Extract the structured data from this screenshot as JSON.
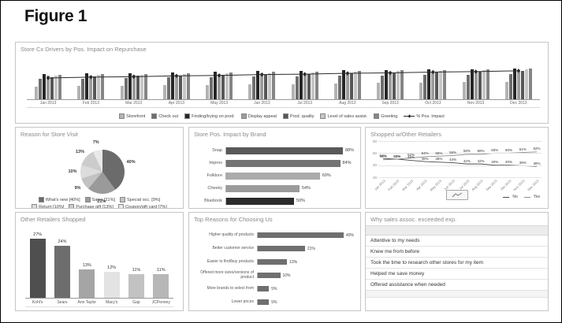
{
  "figure_title": "Figure 1",
  "chart_data": [
    {
      "id": "store-cx-drivers",
      "type": "bar",
      "title": "Store Cx Drivers by Pos. Impact on Repurchase",
      "categories": [
        "Jan 2013",
        "Feb 2013",
        "Mar 2013",
        "Apr 2013",
        "May 2013",
        "Jun 2013",
        "Jul 2013",
        "Aug 2013",
        "Sep 2013",
        "Oct 2013",
        "Nov 2013",
        "Dec 2013"
      ],
      "series": [
        {
          "name": "Storefront",
          "color": "#b3b3b3",
          "values": [
            30,
            31,
            32,
            33,
            34,
            35,
            36,
            37,
            38,
            39,
            40,
            41
          ]
        },
        {
          "name": "Check out",
          "color": "#6e6e6e",
          "values": [
            48,
            49,
            50,
            51,
            52,
            53,
            54,
            55,
            56,
            57,
            58,
            59
          ]
        },
        {
          "name": "Finding/trying on prod.",
          "color": "#262626",
          "values": [
            60,
            61,
            62,
            63,
            64,
            66,
            67,
            68,
            69,
            70,
            71,
            73
          ]
        },
        {
          "name": "Display appeal",
          "color": "#9c9c9c",
          "values": [
            55,
            56,
            57,
            58,
            59,
            61,
            62,
            63,
            64,
            65,
            66,
            68
          ]
        },
        {
          "name": "Prod. quality",
          "color": "#575757",
          "values": [
            52,
            53,
            55,
            56,
            57,
            58,
            60,
            61,
            62,
            63,
            65,
            66
          ]
        },
        {
          "name": "Level of sales assist.",
          "color": "#c6c6c6",
          "values": [
            56,
            57,
            58,
            60,
            61,
            62,
            63,
            64,
            66,
            67,
            68,
            70
          ]
        },
        {
          "name": "Greeting",
          "color": "#858585",
          "values": [
            58,
            59,
            60,
            62,
            63,
            64,
            65,
            66,
            68,
            69,
            70,
            72
          ]
        }
      ],
      "line_series": {
        "name": "% Pos. Impact",
        "color": "#2b2b2b",
        "values": [
          50,
          52,
          53,
          55,
          56,
          58,
          59,
          61,
          62,
          64,
          65,
          67
        ]
      },
      "ylim": [
        0,
        100
      ],
      "legend_position": "bottom"
    },
    {
      "id": "reason-for-store-visit",
      "type": "pie",
      "title": "Reason for Store Visit",
      "slices": [
        {
          "label": "What's new",
          "pct": 40,
          "color": "#6b6b6b"
        },
        {
          "label": "Sales",
          "pct": 21,
          "color": "#9a9a9a"
        },
        {
          "label": "Special occ.",
          "pct": 9,
          "color": "#c2c2c2"
        },
        {
          "label": "Return",
          "pct": 10,
          "color": "#dcdcdc"
        },
        {
          "label": "Purchase gift",
          "pct": 13,
          "color": "#cccccc"
        },
        {
          "label": "Coupon/gift card",
          "pct": 7,
          "color": "#e8e8e8"
        }
      ],
      "legend": [
        "What's new [40%]",
        "Sales [21%]",
        "Special occ. [9%]",
        "Return [10%]",
        "Purchase gift [13%]",
        "Coupon/gift card [7%]"
      ]
    },
    {
      "id": "store-pos-impact-by-brand",
      "type": "bar",
      "orientation": "horizontal",
      "title": "Store Pos. Impact by Brand",
      "categories": [
        "Snap",
        "Improv",
        "Folklore",
        "Cheeky",
        "Bluebook"
      ],
      "values": [
        88,
        84,
        69,
        54,
        50
      ],
      "colors": [
        "#595959",
        "#747474",
        "#ababab",
        "#9b9b9b",
        "#2b2b2b"
      ],
      "value_suffix": "%"
    },
    {
      "id": "shopped-w-other-retailers",
      "type": "line",
      "title": "Shopped w/Other Retailers",
      "categories": [
        "Jan 2013",
        "Feb 2013",
        "Mar 2013",
        "Apr 2013",
        "May 2013",
        "Jun 2013",
        "Jul 2013",
        "Aug 2013",
        "Sep 2013",
        "Oct 2013",
        "Nov 2013",
        "Dec 2013"
      ],
      "series": [
        {
          "name": "No",
          "color": "#4a4a4a",
          "values": [
            51,
            50,
            48,
            46,
            45,
            44,
            42,
            42,
            40,
            40,
            39,
            38
          ]
        },
        {
          "name": "Yes",
          "color": "#8c8c8c",
          "values": [
            49,
            50,
            52,
            54,
            55,
            56,
            58,
            58,
            60,
            60,
            61,
            62
          ]
        }
      ],
      "yticks": [
        80,
        60,
        40,
        20
      ],
      "ylim": [
        20,
        80
      ],
      "legend_position": "bottom-right",
      "value_suffix": "%"
    },
    {
      "id": "other-retailers-shopped",
      "type": "bar",
      "title": "Other Retailers Shopped",
      "categories": [
        "Kohl's",
        "Sears",
        "Ann Taylor",
        "Macy's",
        "Gap",
        "JCPenney"
      ],
      "values": [
        27,
        24,
        13,
        12,
        11,
        11
      ],
      "colors": [
        "#4f4f4f",
        "#6d6d6d",
        "#a5a5a5",
        "#e3e3e3",
        "#c2c2c2",
        "#b7b7b7"
      ],
      "value_suffix": "%"
    },
    {
      "id": "top-reasons-for-choosing-us",
      "type": "bar",
      "orientation": "horizontal",
      "title": "Top Reasons for Choosing Us",
      "categories": [
        "Higher quality of products",
        "Better customer service",
        "Easier to find/buy products",
        "Offered more sizes/versions of product",
        "More brands to select from",
        "Lower prices"
      ],
      "values": [
        40,
        21,
        13,
        10,
        5,
        5
      ],
      "bar_color": "#6f6f6f",
      "value_suffix": "%"
    },
    {
      "id": "why-sales-assoc-exceeded-exp",
      "type": "table",
      "title": "Why sales assoc. exceeded exp.",
      "rows": [
        "Attentive to my needs",
        "Knew me from before",
        "Took the time to research other stores for my item",
        "Helped me save money",
        "Offered assistance when needed"
      ]
    }
  ]
}
